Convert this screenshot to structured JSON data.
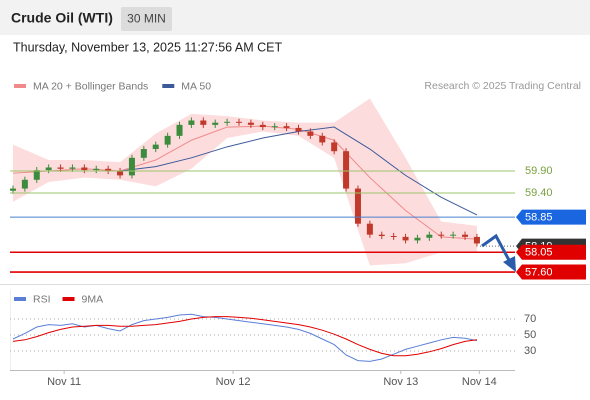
{
  "header": {
    "title": "Crude Oil (WTI)",
    "timeframe": "30 MIN",
    "date": "Thursday, November 13, 2025 11:27:56 AM CET"
  },
  "chart_data": [
    {
      "type": "candlestick",
      "credit": "Research © 2025 Trading Central",
      "x": [
        0,
        1,
        2,
        3,
        4,
        5,
        6,
        7,
        8,
        9,
        10,
        11,
        12,
        13,
        14,
        15,
        16,
        17,
        18,
        19,
        20,
        21,
        22,
        23,
        24,
        25,
        26,
        27,
        28,
        29,
        30,
        31,
        32,
        33,
        34,
        35,
        36,
        37,
        38,
        39
      ],
      "open": [
        59.45,
        59.5,
        59.7,
        59.92,
        59.98,
        59.95,
        59.98,
        59.92,
        59.95,
        59.9,
        59.8,
        60.2,
        60.4,
        60.5,
        60.7,
        60.95,
        61.05,
        60.95,
        61.0,
        61.02,
        61.0,
        60.95,
        60.9,
        60.92,
        60.88,
        60.8,
        60.7,
        60.55,
        60.35,
        59.5,
        58.7,
        58.45,
        58.42,
        58.4,
        58.32,
        58.38,
        58.45,
        58.43,
        58.45,
        58.4
      ],
      "high": [
        59.57,
        59.77,
        59.99,
        60.05,
        60.05,
        60.05,
        60.05,
        60.02,
        60.02,
        59.97,
        60.27,
        60.47,
        60.57,
        60.77,
        61.02,
        61.12,
        61.12,
        61.07,
        61.09,
        61.09,
        61.07,
        61.02,
        60.99,
        60.99,
        60.95,
        60.87,
        60.77,
        60.62,
        60.42,
        59.57,
        58.77,
        58.52,
        58.49,
        58.47,
        58.45,
        58.52,
        58.52,
        58.52,
        58.52,
        58.47
      ],
      "low": [
        59.38,
        59.43,
        59.63,
        59.85,
        59.88,
        59.88,
        59.85,
        59.85,
        59.83,
        59.73,
        59.73,
        60.13,
        60.33,
        60.43,
        60.63,
        60.88,
        60.88,
        60.88,
        60.93,
        60.93,
        60.88,
        60.83,
        60.83,
        60.81,
        60.73,
        60.63,
        60.48,
        60.28,
        59.43,
        58.63,
        58.38,
        58.35,
        58.33,
        58.25,
        58.25,
        58.31,
        58.36,
        58.36,
        58.33,
        58.18
      ],
      "close": [
        59.5,
        59.7,
        59.92,
        59.98,
        59.95,
        59.98,
        59.92,
        59.95,
        59.9,
        59.8,
        60.2,
        60.4,
        60.5,
        60.7,
        60.95,
        61.05,
        60.95,
        61.0,
        61.02,
        61.0,
        60.95,
        60.9,
        60.92,
        60.88,
        60.8,
        60.7,
        60.55,
        60.35,
        59.5,
        58.7,
        58.45,
        58.42,
        58.4,
        58.32,
        58.38,
        58.45,
        58.43,
        58.45,
        58.4,
        58.25
      ],
      "up_color": "#3d8b3d",
      "down_color": "#c0392b",
      "ylim": [
        57.35,
        61.63
      ],
      "xlim": [
        -0.25,
        42.2
      ],
      "series": [
        {
          "name": "MA 20 + Bollinger Bands",
          "color": "#f08a8a",
          "band_color": "#fbd6d6",
          "x": [
            0,
            3,
            6,
            9,
            12,
            15,
            18,
            21,
            24,
            27,
            30,
            33,
            36,
            39
          ],
          "values": [
            59.85,
            59.9,
            59.95,
            59.9,
            60.15,
            60.6,
            60.9,
            60.92,
            60.85,
            60.6,
            59.75,
            59.0,
            58.4,
            58.35
          ],
          "upper": [
            60.5,
            60.15,
            60.15,
            60.1,
            60.75,
            61.2,
            61.15,
            61.05,
            61.0,
            61.0,
            61.55,
            60.2,
            58.75,
            58.65
          ],
          "lower": [
            59.2,
            59.65,
            59.75,
            59.7,
            59.55,
            59.95,
            60.65,
            60.8,
            60.7,
            60.2,
            57.75,
            57.8,
            58.05,
            58.05
          ]
        },
        {
          "name": "MA 50",
          "color": "#3c5a9a",
          "x": [
            9,
            12,
            15,
            18,
            21,
            24,
            27,
            30,
            33,
            36,
            39
          ],
          "values": [
            59.9,
            60.0,
            60.2,
            60.45,
            60.65,
            60.8,
            60.9,
            60.4,
            59.8,
            59.3,
            58.9
          ]
        }
      ],
      "levels": [
        {
          "value": 59.9,
          "label": "59.90",
          "color": "#9bc46b",
          "box": false,
          "line": "solid"
        },
        {
          "value": 59.4,
          "label": "59.40",
          "color": "#9bc46b",
          "box": false,
          "line": "solid"
        },
        {
          "value": 58.85,
          "label": "58.85",
          "color": "#4a7fd0",
          "box": true,
          "box_color": "#1a66e0",
          "line": "solid"
        },
        {
          "value": 58.19,
          "label": "58.19",
          "color": "#666666",
          "box": true,
          "box_color": "#333333",
          "line": "dotted"
        },
        {
          "value": 58.05,
          "label": "58.05",
          "color": "#e00000",
          "box": true,
          "box_color": "#e00000",
          "line": "solid"
        },
        {
          "value": 57.6,
          "label": "57.60",
          "color": "#e00000",
          "box": true,
          "box_color": "#e00000",
          "line": "solid"
        }
      ]
    },
    {
      "type": "line",
      "x": [
        0,
        1,
        2,
        3,
        4,
        5,
        6,
        7,
        8,
        9,
        10,
        11,
        12,
        13,
        14,
        15,
        16,
        17,
        18,
        19,
        20,
        21,
        22,
        23,
        24,
        25,
        26,
        27,
        28,
        29,
        30,
        31,
        32,
        33,
        34,
        35,
        36,
        37,
        38,
        39
      ],
      "series": [
        {
          "name": "RSI",
          "color": "#5b7fd6",
          "values": [
            45,
            52,
            60,
            63,
            62,
            64,
            60,
            62,
            58,
            55,
            63,
            68,
            70,
            72,
            75,
            76,
            73,
            72,
            70,
            68,
            66,
            64,
            62,
            60,
            57,
            52,
            45,
            38,
            25,
            18,
            17,
            20,
            26,
            32,
            36,
            40,
            44,
            47,
            46,
            43
          ]
        },
        {
          "name": "9MA",
          "color": "#e00000",
          "values": [
            42,
            44,
            48,
            53,
            57,
            60,
            61,
            62,
            62,
            61,
            61,
            62,
            63,
            65,
            67,
            70,
            72,
            73,
            73,
            72,
            71,
            69,
            67,
            65,
            63,
            60,
            56,
            51,
            45,
            38,
            32,
            27,
            24,
            24,
            26,
            29,
            33,
            38,
            42,
            44
          ]
        }
      ],
      "ylim": [
        10,
        100
      ],
      "yticks": [
        70,
        50,
        30
      ],
      "xlim": [
        -0.25,
        42.2
      ],
      "xticks": [
        {
          "value": 4.3,
          "label": "Nov 11"
        },
        {
          "value": 18.5,
          "label": "Nov 12"
        },
        {
          "value": 32.6,
          "label": "Nov 13"
        },
        {
          "value": 39.2,
          "label": "Nov 14"
        }
      ]
    }
  ]
}
